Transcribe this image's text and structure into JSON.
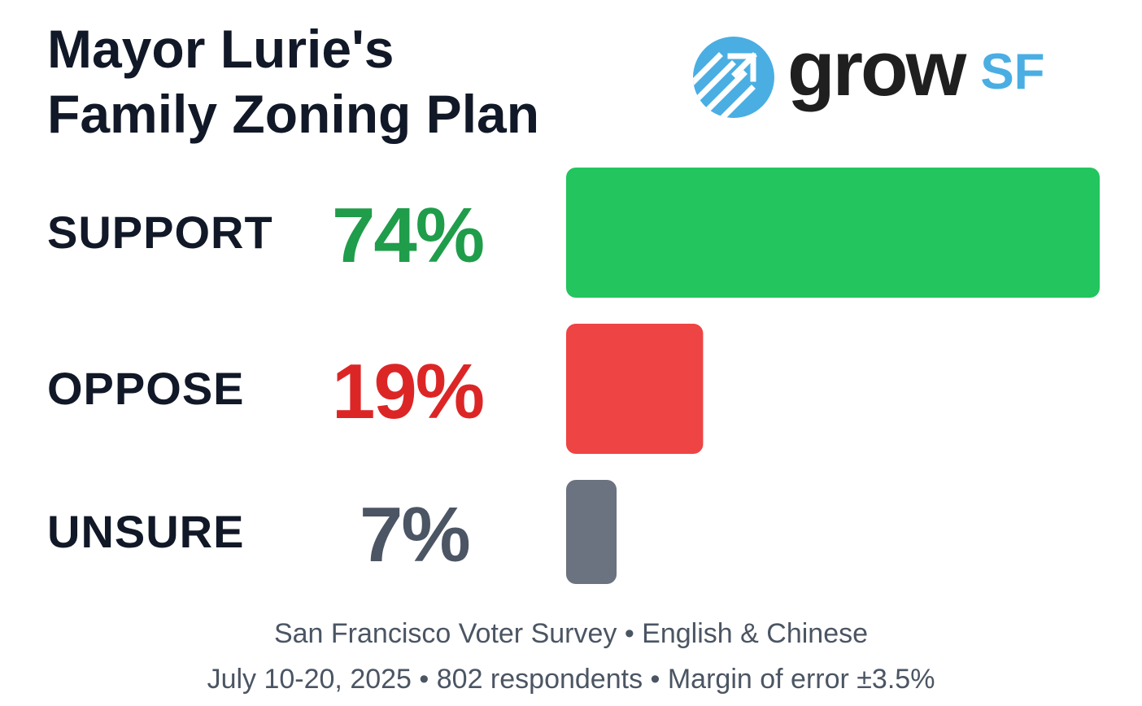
{
  "title": {
    "line1": "Mayor Lurie's",
    "line2": "Family Zoning Plan"
  },
  "logo": {
    "word": "grow",
    "accent": "SF",
    "icon": "growsf-arrows-icon",
    "colors": {
      "accent": "#4aaee3",
      "word": "#1f1f1f"
    }
  },
  "chart_data": {
    "type": "bar",
    "orientation": "horizontal",
    "categories": [
      "SUPPORT",
      "OPPOSE",
      "UNSURE"
    ],
    "values": [
      74,
      19,
      7
    ],
    "value_labels": [
      "74%",
      "19%",
      "7%"
    ],
    "unit": "%",
    "xlim": [
      0,
      74
    ],
    "colors": [
      "#22c55e",
      "#ef4444",
      "#6b7280"
    ],
    "label_colors": [
      "#1f9d4a",
      "#dc2626",
      "#4b5563"
    ],
    "grid": false,
    "legend": "none"
  },
  "footer": {
    "line1": "San Francisco Voter Survey • English & Chinese",
    "line2": "July 10-20, 2025 • 802 respondents • Margin of error ±3.5%"
  }
}
